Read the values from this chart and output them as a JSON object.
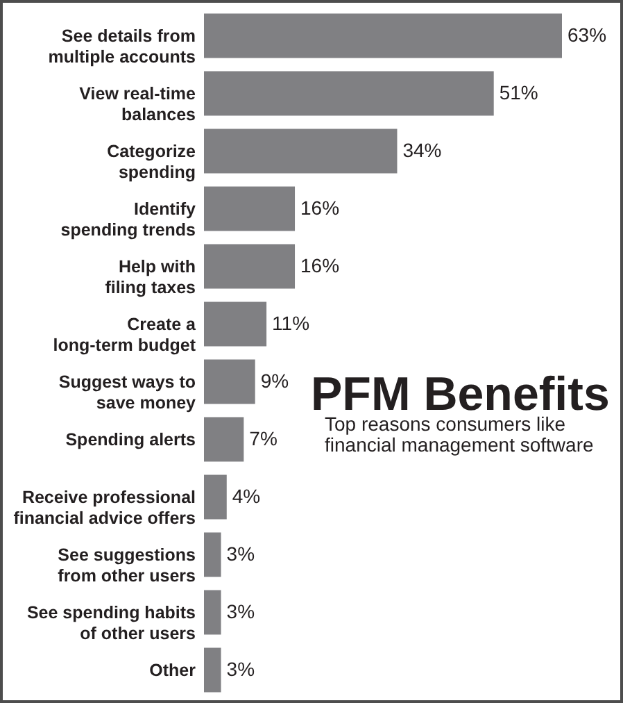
{
  "chart_data": {
    "type": "bar",
    "orientation": "horizontal",
    "title": "PFM Benefits",
    "subtitle": "Top reasons consumers like\nfinancial management software",
    "categories": [
      "See details from\nmultiple accounts",
      "View real-time\nbalances",
      "Categorize\nspending",
      "Identify\nspending trends",
      "Help with\nfiling taxes",
      "Create a\nlong-term budget",
      "Suggest ways to\nsave money",
      "Spending alerts",
      "Receive professional\nfinancial advice offers",
      "See suggestions\nfrom other users",
      "See spending habits\nof other users",
      "Other"
    ],
    "values": [
      63,
      51,
      34,
      16,
      16,
      11,
      9,
      7,
      4,
      3,
      3,
      3
    ],
    "value_labels": [
      "63%",
      "51%",
      "34%",
      "16%",
      "16%",
      "11%",
      "9%",
      "7%",
      "4%",
      "3%",
      "3%",
      "3%"
    ],
    "color": "#808083",
    "tick_labels": "y"
  }
}
